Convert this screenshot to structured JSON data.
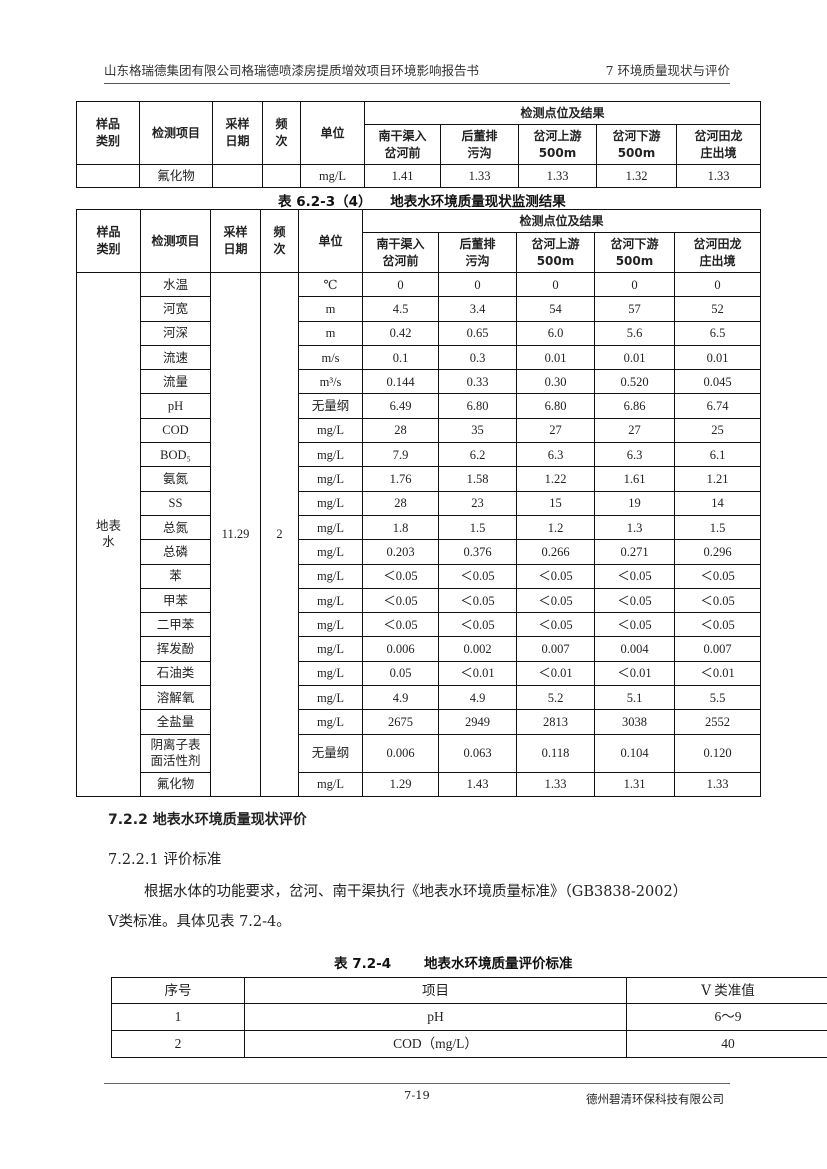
{
  "header": {
    "left": "山东格瑞德集团有限公司格瑞德喷漆房提质增效项目环境影响报告书",
    "right": "7 环境质量现状与评价"
  },
  "table_head": {
    "sample_type": "样品类别",
    "item": "检测项目",
    "date": "采样日期",
    "freq": "频次",
    "unit": "单位",
    "results": "检测点位及结果",
    "sites": [
      "南干渠入岔河前",
      "后董排污沟",
      "岔河上游500m",
      "岔河下游500m",
      "岔河田龙庄出境"
    ]
  },
  "table_prev": {
    "rows": [
      {
        "item": "氟化物",
        "unit": "mg/L",
        "values": [
          "1.41",
          "1.33",
          "1.33",
          "1.32",
          "1.33"
        ]
      }
    ]
  },
  "table_6_2_3_4": {
    "caption": "表 6.2-3（4）    地表水环境质量现状监测结果",
    "sample_type": "地表水",
    "date": "11.29",
    "freq": "2",
    "rows": [
      {
        "item": "水温",
        "unit": "℃",
        "values": [
          "0",
          "0",
          "0",
          "0",
          "0"
        ]
      },
      {
        "item": "河宽",
        "unit": "m",
        "values": [
          "4.5",
          "3.4",
          "54",
          "57",
          "52"
        ]
      },
      {
        "item": "河深",
        "unit": "m",
        "values": [
          "0.42",
          "0.65",
          "6.0",
          "5.6",
          "6.5"
        ]
      },
      {
        "item": "流速",
        "unit": "m/s",
        "values": [
          "0.1",
          "0.3",
          "0.01",
          "0.01",
          "0.01"
        ]
      },
      {
        "item": "流量",
        "unit": "m³/s",
        "values": [
          "0.144",
          "0.33",
          "0.30",
          "0.520",
          "0.045"
        ]
      },
      {
        "item": "pH",
        "unit": "无量纲",
        "values": [
          "6.49",
          "6.80",
          "6.80",
          "6.86",
          "6.74"
        ]
      },
      {
        "item": "COD",
        "unit": "mg/L",
        "values": [
          "28",
          "35",
          "27",
          "27",
          "25"
        ]
      },
      {
        "item": "BOD₅",
        "unit": "mg/L",
        "values": [
          "7.9",
          "6.2",
          "6.3",
          "6.3",
          "6.1"
        ]
      },
      {
        "item": "氨氮",
        "unit": "mg/L",
        "values": [
          "1.76",
          "1.58",
          "1.22",
          "1.61",
          "1.21"
        ]
      },
      {
        "item": "SS",
        "unit": "mg/L",
        "values": [
          "28",
          "23",
          "15",
          "19",
          "14"
        ]
      },
      {
        "item": "总氮",
        "unit": "mg/L",
        "values": [
          "1.8",
          "1.5",
          "1.2",
          "1.3",
          "1.5"
        ]
      },
      {
        "item": "总磷",
        "unit": "mg/L",
        "values": [
          "0.203",
          "0.376",
          "0.266",
          "0.271",
          "0.296"
        ]
      },
      {
        "item": "苯",
        "unit": "mg/L",
        "values": [
          "＜0.05",
          "＜0.05",
          "＜0.05",
          "＜0.05",
          "＜0.05"
        ]
      },
      {
        "item": "甲苯",
        "unit": "mg/L",
        "values": [
          "＜0.05",
          "＜0.05",
          "＜0.05",
          "＜0.05",
          "＜0.05"
        ]
      },
      {
        "item": "二甲苯",
        "unit": "mg/L",
        "values": [
          "＜0.05",
          "＜0.05",
          "＜0.05",
          "＜0.05",
          "＜0.05"
        ]
      },
      {
        "item": "挥发酚",
        "unit": "mg/L",
        "values": [
          "0.006",
          "0.002",
          "0.007",
          "0.004",
          "0.007"
        ]
      },
      {
        "item": "石油类",
        "unit": "mg/L",
        "values": [
          "0.05",
          "＜0.01",
          "＜0.01",
          "＜0.01",
          "＜0.01"
        ]
      },
      {
        "item": "溶解氧",
        "unit": "mg/L",
        "values": [
          "4.9",
          "4.9",
          "5.2",
          "5.1",
          "5.5"
        ]
      },
      {
        "item": "全盐量",
        "unit": "mg/L",
        "values": [
          "2675",
          "2949",
          "2813",
          "3038",
          "2552"
        ]
      },
      {
        "item": "阴离子表面活性剂",
        "unit": "无量纲",
        "values": [
          "0.006",
          "0.063",
          "0.118",
          "0.104",
          "0.120"
        ]
      },
      {
        "item": "氟化物",
        "unit": "mg/L",
        "values": [
          "1.29",
          "1.43",
          "1.33",
          "1.31",
          "1.33"
        ]
      }
    ]
  },
  "section": {
    "heading": "7.2.2  地表水环境质量现状评价",
    "subheading": "7.2.2.1 评价标准",
    "para1": "根据水体的功能要求，岔河、南干渠执行《地表水环境质量标准》（GB3838-2002）",
    "para2": "Ⅴ类标准。具体见表 7.2-4。"
  },
  "table_7_2_4": {
    "caption": "表 7.2-4       地表水环境质量评价标准",
    "headers": [
      "序号",
      "项目",
      "Ⅴ 类准值"
    ],
    "rows": [
      [
        "1",
        "pH",
        "6～9"
      ],
      [
        "2",
        "COD（mg/L）",
        "40"
      ]
    ]
  },
  "footer": {
    "page": "7-19",
    "company": "德州碧清环保科技有限公司"
  }
}
